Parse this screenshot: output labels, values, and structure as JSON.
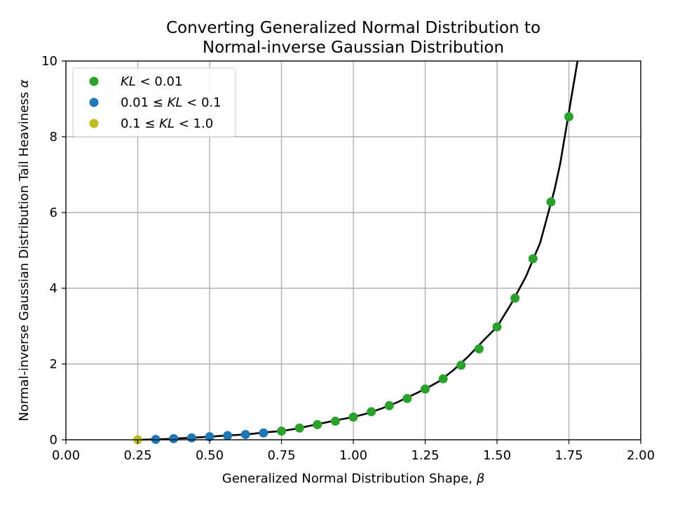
{
  "chart_data": {
    "type": "scatter",
    "title_line1": "Converting Generalized Normal Distribution to",
    "title_line2": "Normal-inverse Gaussian Distribution",
    "xlabel_text": "Generalized Normal Distribution Shape, ",
    "xlabel_symbol": "β",
    "ylabel_text": "Normal-inverse Gaussian Distribution Tail Heaviness ",
    "ylabel_symbol": "α",
    "xlim": [
      0.0,
      2.0
    ],
    "ylim": [
      0,
      10
    ],
    "xticks": [
      "0.00",
      "0.25",
      "0.50",
      "0.75",
      "1.00",
      "1.25",
      "1.50",
      "1.75",
      "2.00"
    ],
    "yticks": [
      "0",
      "2",
      "4",
      "6",
      "8",
      "10"
    ],
    "grid": true,
    "legend_placement": "top-left",
    "legend": [
      {
        "pre": "",
        "var": "KL",
        "post": " < 0.01",
        "color": "#2ca02c"
      },
      {
        "pre": "0.01 ≤ ",
        "var": "KL",
        "post": " < 0.1",
        "color": "#1f77b4"
      },
      {
        "pre": "0.1 ≤ ",
        "var": "KL",
        "post": " < 1.0",
        "color": "#bcbd22"
      }
    ],
    "series": [
      {
        "color": "#2ca02c",
        "x": [
          0.75,
          0.8125,
          0.875,
          0.9375,
          1.0,
          1.0625,
          1.125,
          1.1875,
          1.25,
          1.3125,
          1.375,
          1.4375,
          1.5,
          1.5625,
          1.625,
          1.6875,
          1.75
        ],
        "y": [
          0.23,
          0.31,
          0.4,
          0.49,
          0.6,
          0.74,
          0.9,
          1.09,
          1.34,
          1.61,
          1.97,
          2.4,
          2.98,
          3.74,
          4.78,
          6.28,
          8.53
        ]
      },
      {
        "color": "#1f77b4",
        "x": [
          0.3125,
          0.375,
          0.4375,
          0.5,
          0.5625,
          0.625,
          0.6875
        ],
        "y": [
          0.01,
          0.03,
          0.05,
          0.08,
          0.11,
          0.14,
          0.18
        ]
      },
      {
        "color": "#bcbd22",
        "x": [
          0.25
        ],
        "y": [
          0.0
        ]
      }
    ],
    "fit_curve": {
      "color": "#000000",
      "x": [
        0.25,
        0.3,
        0.35,
        0.4,
        0.45,
        0.5,
        0.55,
        0.6,
        0.65,
        0.7,
        0.75,
        0.8,
        0.85,
        0.9,
        0.95,
        1.0,
        1.05,
        1.1,
        1.15,
        1.2,
        1.25,
        1.3,
        1.35,
        1.4,
        1.45,
        1.5,
        1.55,
        1.6,
        1.65,
        1.7,
        1.72,
        1.74,
        1.76,
        1.78
      ],
      "y": [
        0.0,
        0.01,
        0.02,
        0.04,
        0.06,
        0.08,
        0.11,
        0.13,
        0.16,
        0.2,
        0.23,
        0.29,
        0.37,
        0.45,
        0.53,
        0.6,
        0.7,
        0.83,
        0.98,
        1.16,
        1.34,
        1.55,
        1.85,
        2.2,
        2.6,
        2.98,
        3.6,
        4.3,
        5.2,
        6.6,
        7.3,
        8.2,
        9.1,
        10.0
      ]
    }
  }
}
